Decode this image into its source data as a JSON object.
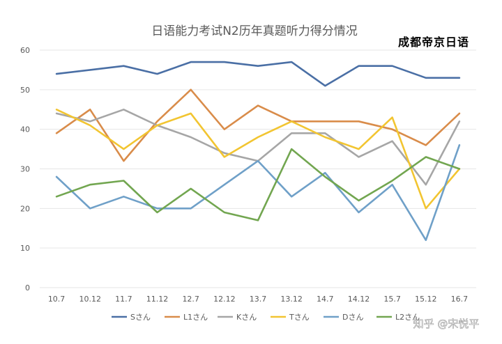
{
  "chart_data": {
    "type": "line",
    "title": "日语能力考试N2历年真题听力得分情况",
    "categories": [
      "10.7",
      "10.12",
      "11.7",
      "11.12",
      "12.7",
      "12.12",
      "13.7",
      "13.12",
      "14.7",
      "14.12",
      "15.7",
      "15.12",
      "16.7"
    ],
    "ylim": [
      0,
      60
    ],
    "yticks": [
      0,
      10,
      20,
      30,
      40,
      50,
      60
    ],
    "grid": true,
    "legend_position": "bottom",
    "series": [
      {
        "name": "Sさん",
        "color": "#4A6FA5",
        "values": [
          54,
          55,
          56,
          54,
          57,
          57,
          56,
          57,
          51,
          56,
          56,
          53,
          53
        ]
      },
      {
        "name": "L1さん",
        "color": "#D98C4A",
        "values": [
          39,
          45,
          32,
          42,
          50,
          40,
          46,
          42,
          42,
          42,
          40,
          36,
          44
        ]
      },
      {
        "name": "Kさん",
        "color": "#A6A6A6",
        "values": [
          44,
          42,
          45,
          41,
          38,
          34,
          32,
          39,
          39,
          33,
          37,
          26,
          42
        ]
      },
      {
        "name": "Tさん",
        "color": "#F2C531",
        "values": [
          45,
          41,
          35,
          41,
          44,
          33,
          38,
          42,
          38,
          35,
          43,
          20,
          30
        ]
      },
      {
        "name": "Dさん",
        "color": "#6FA0C8",
        "values": [
          28,
          20,
          23,
          20,
          20,
          26,
          32,
          23,
          29,
          19,
          26,
          12,
          36
        ]
      },
      {
        "name": "L2さん",
        "color": "#72A650",
        "values": [
          23,
          26,
          27,
          19,
          25,
          19,
          17,
          35,
          28,
          22,
          27,
          33,
          30
        ]
      }
    ]
  },
  "brand_text": "成都帝京日语",
  "watermark_text": "知乎 @宋悦平"
}
